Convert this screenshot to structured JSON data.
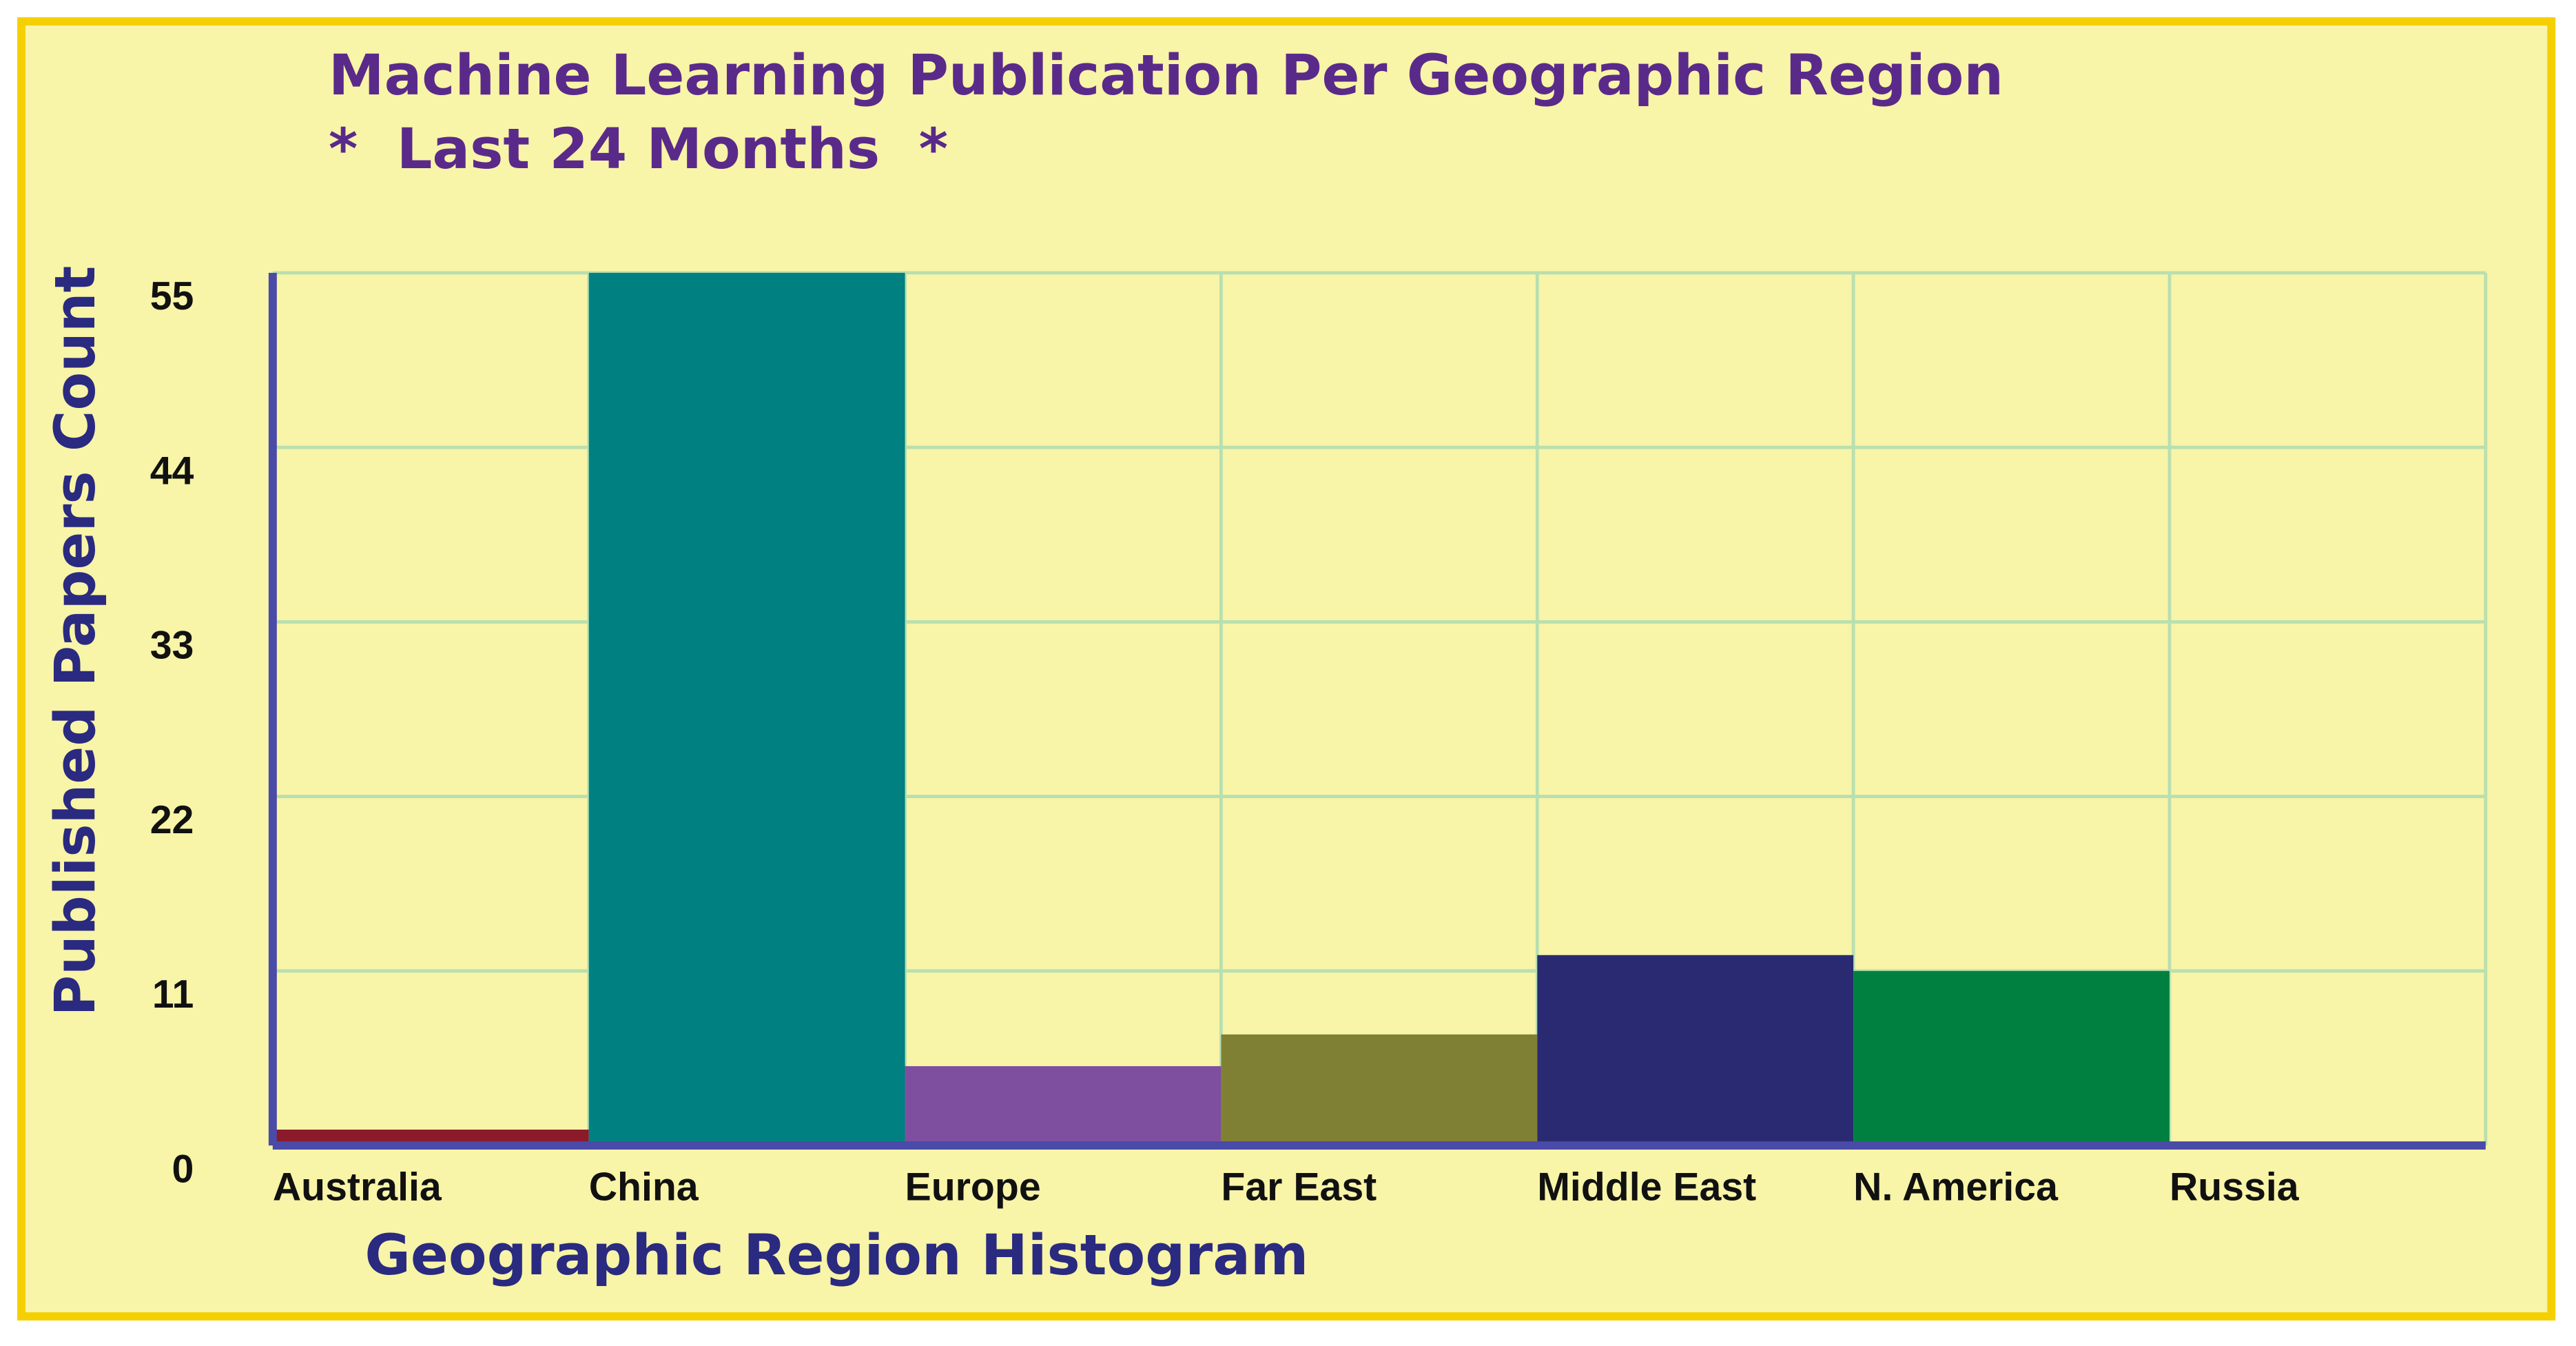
{
  "chart_data": {
    "type": "bar",
    "title": "Machine Learning Publication Per Geographic Region",
    "subtitle": "*  Last 24 Months  *",
    "x_label": "Geographic Region Histogram",
    "y_label": "Published Papers Count",
    "categories": [
      "Australia",
      "China",
      "Europe",
      "Far East",
      "Middle East",
      "N. America",
      "Russia"
    ],
    "values": [
      1,
      55,
      5,
      7,
      12,
      11,
      0
    ],
    "colors": [
      "#8b1a2a",
      "#008080",
      "#7f4f9f",
      "#808035",
      "#2a2a72",
      "#008040",
      "#5a4fa0"
    ],
    "ylim": [
      0,
      55
    ],
    "yticks": [
      0,
      11,
      22,
      33,
      44,
      55
    ],
    "grid": true
  }
}
